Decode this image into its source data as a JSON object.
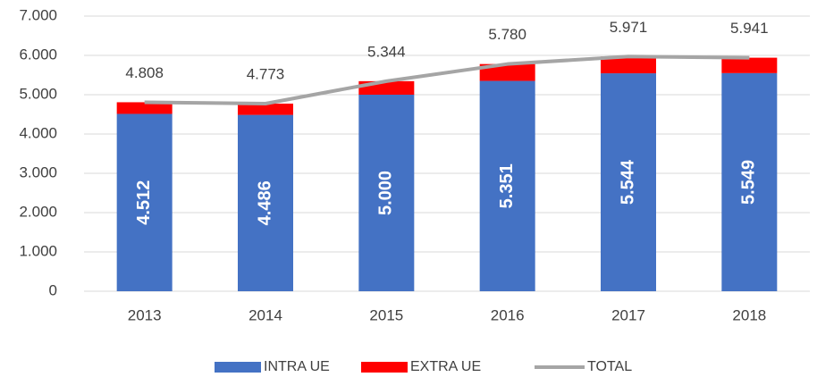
{
  "chart_data": {
    "type": "bar_line",
    "categories": [
      "2013",
      "2014",
      "2015",
      "2016",
      "2017",
      "2018"
    ],
    "series": [
      {
        "name": "INTRA UE",
        "color": "#4472c4",
        "values": [
          4512,
          4486,
          5000,
          5351,
          5544,
          5549
        ],
        "value_labels": [
          "4.512",
          "4.486",
          "5.000",
          "5.351",
          "5.544",
          "5.549"
        ]
      },
      {
        "name": "EXTRA UE",
        "color": "#ff0000",
        "values": [
          296,
          287,
          344,
          429,
          427,
          392
        ]
      },
      {
        "name": "TOTAL",
        "color": "#a5a5a5",
        "type": "line",
        "values": [
          4808,
          4773,
          5344,
          5780,
          5971,
          5941
        ],
        "value_labels": [
          "4.808",
          "4.773",
          "5.344",
          "5.780",
          "5.971",
          "5.941"
        ]
      }
    ],
    "ylim": [
      0,
      7000
    ],
    "yticks": [
      0,
      {
        "value": 1000,
        "label": "1.000"
      },
      {
        "value": 2000,
        "label": "2.000"
      },
      {
        "value": 3000,
        "label": "3.000"
      },
      {
        "value": 4000,
        "label": "4.000"
      },
      {
        "value": 5000,
        "label": "5.000"
      },
      {
        "value": 6000,
        "label": "6.000"
      },
      {
        "value": 7000,
        "label": "7.000"
      }
    ],
    "grid": true,
    "legend": "bottom"
  }
}
